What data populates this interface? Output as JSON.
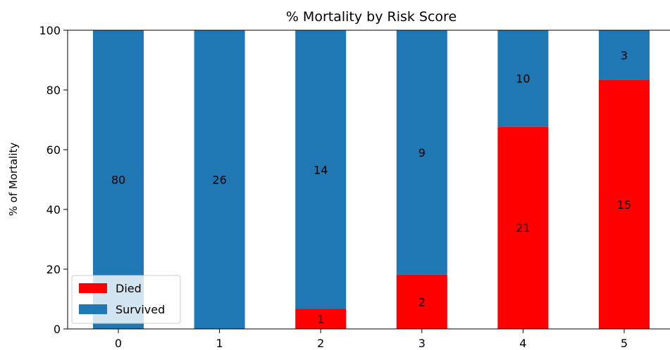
{
  "chart_data": {
    "type": "bar",
    "stacked": true,
    "title": "% Mortality by Risk Score",
    "xlabel": "",
    "ylabel": "% of Mortality",
    "ylim": [
      0,
      100
    ],
    "yticks": [
      "0",
      "20",
      "40",
      "60",
      "80",
      "100"
    ],
    "categories": [
      "0",
      "1",
      "2",
      "3",
      "4",
      "5"
    ],
    "series": [
      {
        "name": "Died",
        "color": "#ff0000",
        "values": [
          0,
          0,
          6.7,
          18.2,
          67.7,
          83.3
        ],
        "counts": [
          "",
          "",
          "1",
          "2",
          "21",
          "15"
        ]
      },
      {
        "name": "Survived",
        "color": "#1f77b4",
        "values": [
          100,
          100,
          93.3,
          81.8,
          32.3,
          16.7
        ],
        "counts": [
          "80",
          "26",
          "14",
          "9",
          "10",
          "3"
        ]
      }
    ],
    "legend_position": "lower-left",
    "grid": false
  }
}
